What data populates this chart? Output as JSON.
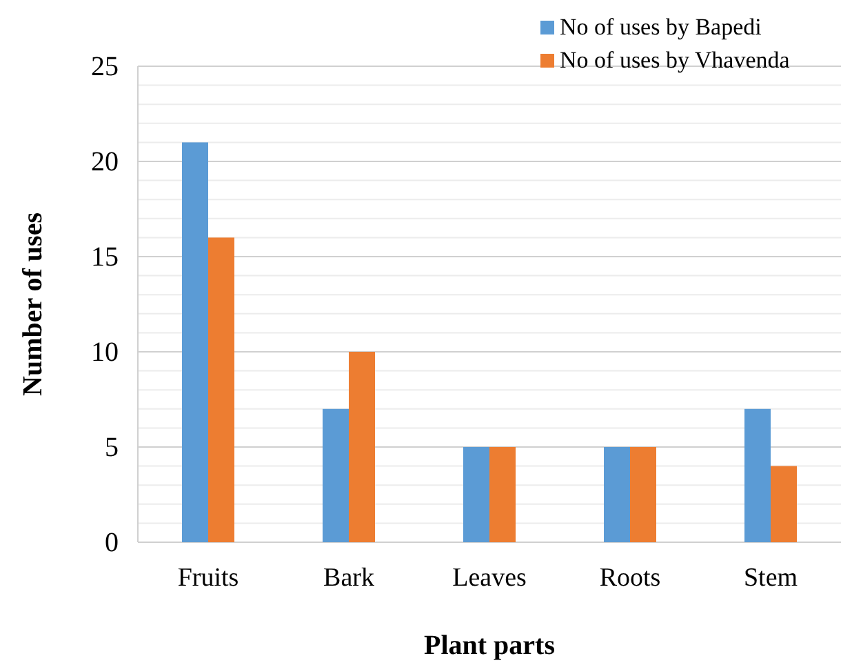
{
  "chart_data": {
    "type": "bar",
    "xlabel": "Plant parts",
    "ylabel": "Number of uses",
    "categories": [
      "Fruits",
      "Bark",
      "Leaves",
      "Roots",
      "Stem"
    ],
    "series": [
      {
        "name": "No of uses by Bapedi",
        "color": "#5b9bd5",
        "values": [
          21,
          7,
          5,
          5,
          7
        ]
      },
      {
        "name": "No of uses by Vhavenda",
        "color": "#ed7d31",
        "values": [
          16,
          10,
          5,
          5,
          4
        ]
      }
    ],
    "ylim": [
      0,
      25
    ],
    "yticks": [
      0,
      {
        "value": 1,
        "label": null
      },
      {
        "value": 2,
        "label": null
      },
      {
        "value": 3,
        "label": null
      },
      {
        "value": 4,
        "label": null
      },
      5,
      {
        "value": 6,
        "label": null
      },
      {
        "value": 7,
        "label": null
      },
      {
        "value": 8,
        "label": null
      },
      {
        "value": 9,
        "label": null
      },
      10,
      {
        "value": 11,
        "label": null
      },
      {
        "value": 12,
        "label": null
      },
      {
        "value": 13,
        "label": null
      },
      {
        "value": 14,
        "label": null
      },
      15,
      {
        "value": 16,
        "label": null
      },
      {
        "value": 17,
        "label": null
      },
      {
        "value": 18,
        "label": null
      },
      {
        "value": 19,
        "label": null
      },
      20,
      {
        "value": 21,
        "label": null
      },
      {
        "value": 22,
        "label": null
      },
      {
        "value": 23,
        "label": null
      },
      {
        "value": 24,
        "label": null
      },
      25
    ],
    "grid": true,
    "legend": "top right"
  }
}
